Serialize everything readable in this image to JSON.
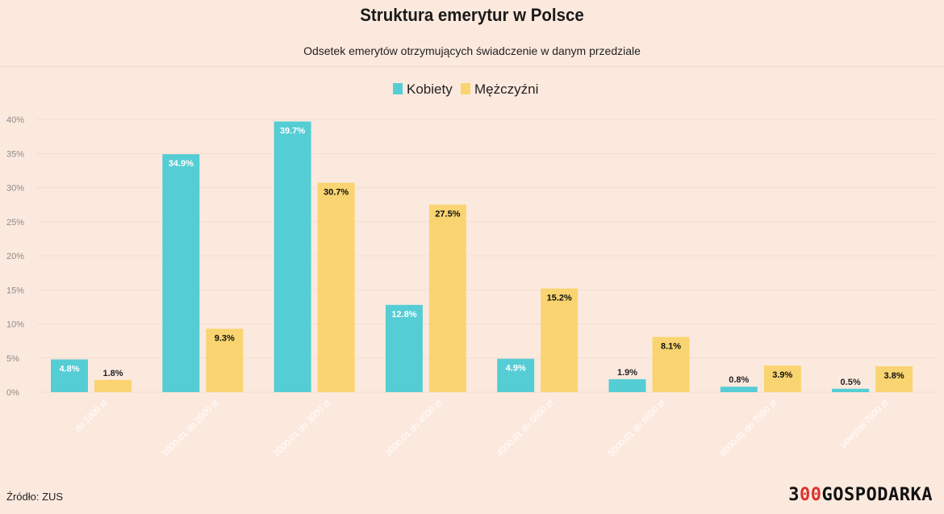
{
  "chart_data": {
    "type": "bar",
    "title": "Struktura emerytur w Polsce",
    "subtitle": "Odsetek emerytów otrzymujących świadczenie w danym przedziale",
    "categories": [
      "do 1000 zł",
      "1000,01 do 2000 zł",
      "2000,01 do 3000 zł",
      "3000,01 do 4000 zł",
      "4000,01 do 5000 zł",
      "5000,01 do 6000 zł",
      "6000,01 do 7000 zł",
      "powyżej 7000 zł"
    ],
    "series": [
      {
        "name": "Kobiety",
        "color": "#55cdd4",
        "values": [
          4.8,
          34.9,
          39.7,
          12.8,
          4.9,
          1.9,
          0.8,
          0.5
        ]
      },
      {
        "name": "Mężczyźni",
        "color": "#f9d470",
        "values": [
          1.8,
          9.3,
          30.7,
          27.5,
          15.2,
          8.1,
          3.9,
          3.8
        ]
      }
    ],
    "yticks": [
      "0%",
      "5%",
      "10%",
      "15%",
      "20%",
      "25%",
      "30%",
      "35%",
      "40%"
    ],
    "ylim": [
      0,
      40
    ],
    "grid": true,
    "legend_position": "top-center"
  },
  "footer": {
    "source": "Źródło: ZUS",
    "logo_prefix": "3",
    "logo_highlight": "00",
    "logo_suffix": "GOSPODARKA"
  }
}
